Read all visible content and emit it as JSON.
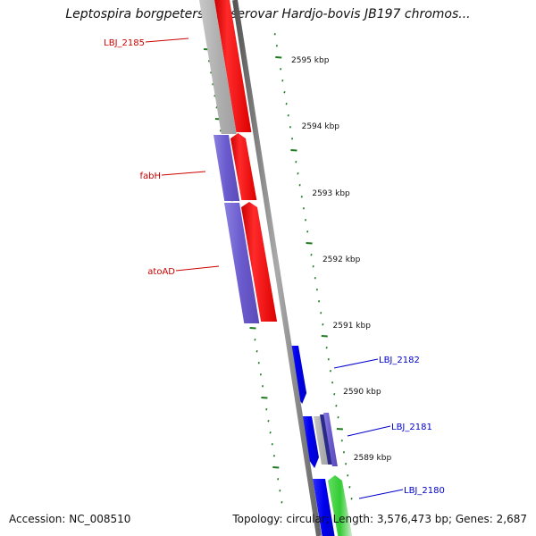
{
  "title": "Leptospira borgpetersenii serovar Hardjo-bovis JB197 chromos...",
  "footer": {
    "accession": "Accession: NC_008510",
    "summary": "Topology: circular; Length: 3,576,473 bp; Genes: 2,687"
  },
  "colors": {
    "tick_green": "#1e7a1e",
    "red_gene": "#ff0000",
    "grey_gene": "#b4b4b4",
    "purple_gene": "#6a5acd",
    "blue_gene": "#0000ee",
    "green_gene": "#33cc33",
    "red_label": "#cc0000",
    "blue_label": "#0000cc",
    "backbone": "#808080"
  },
  "scale_labels": [
    "2595 kbp",
    "2594 kbp",
    "2593 kbp",
    "2592 kbp",
    "2591 kbp",
    "2590 kbp",
    "2589 kbp"
  ],
  "gene_labels": [
    {
      "name": "LBJ_2185",
      "color": "red"
    },
    {
      "name": "fabH",
      "color": "red"
    },
    {
      "name": "atoAD",
      "color": "red"
    },
    {
      "name": "LBJ_2182",
      "color": "blue"
    },
    {
      "name": "LBJ_2181",
      "color": "blue"
    },
    {
      "name": "LBJ_2180",
      "color": "blue"
    }
  ]
}
